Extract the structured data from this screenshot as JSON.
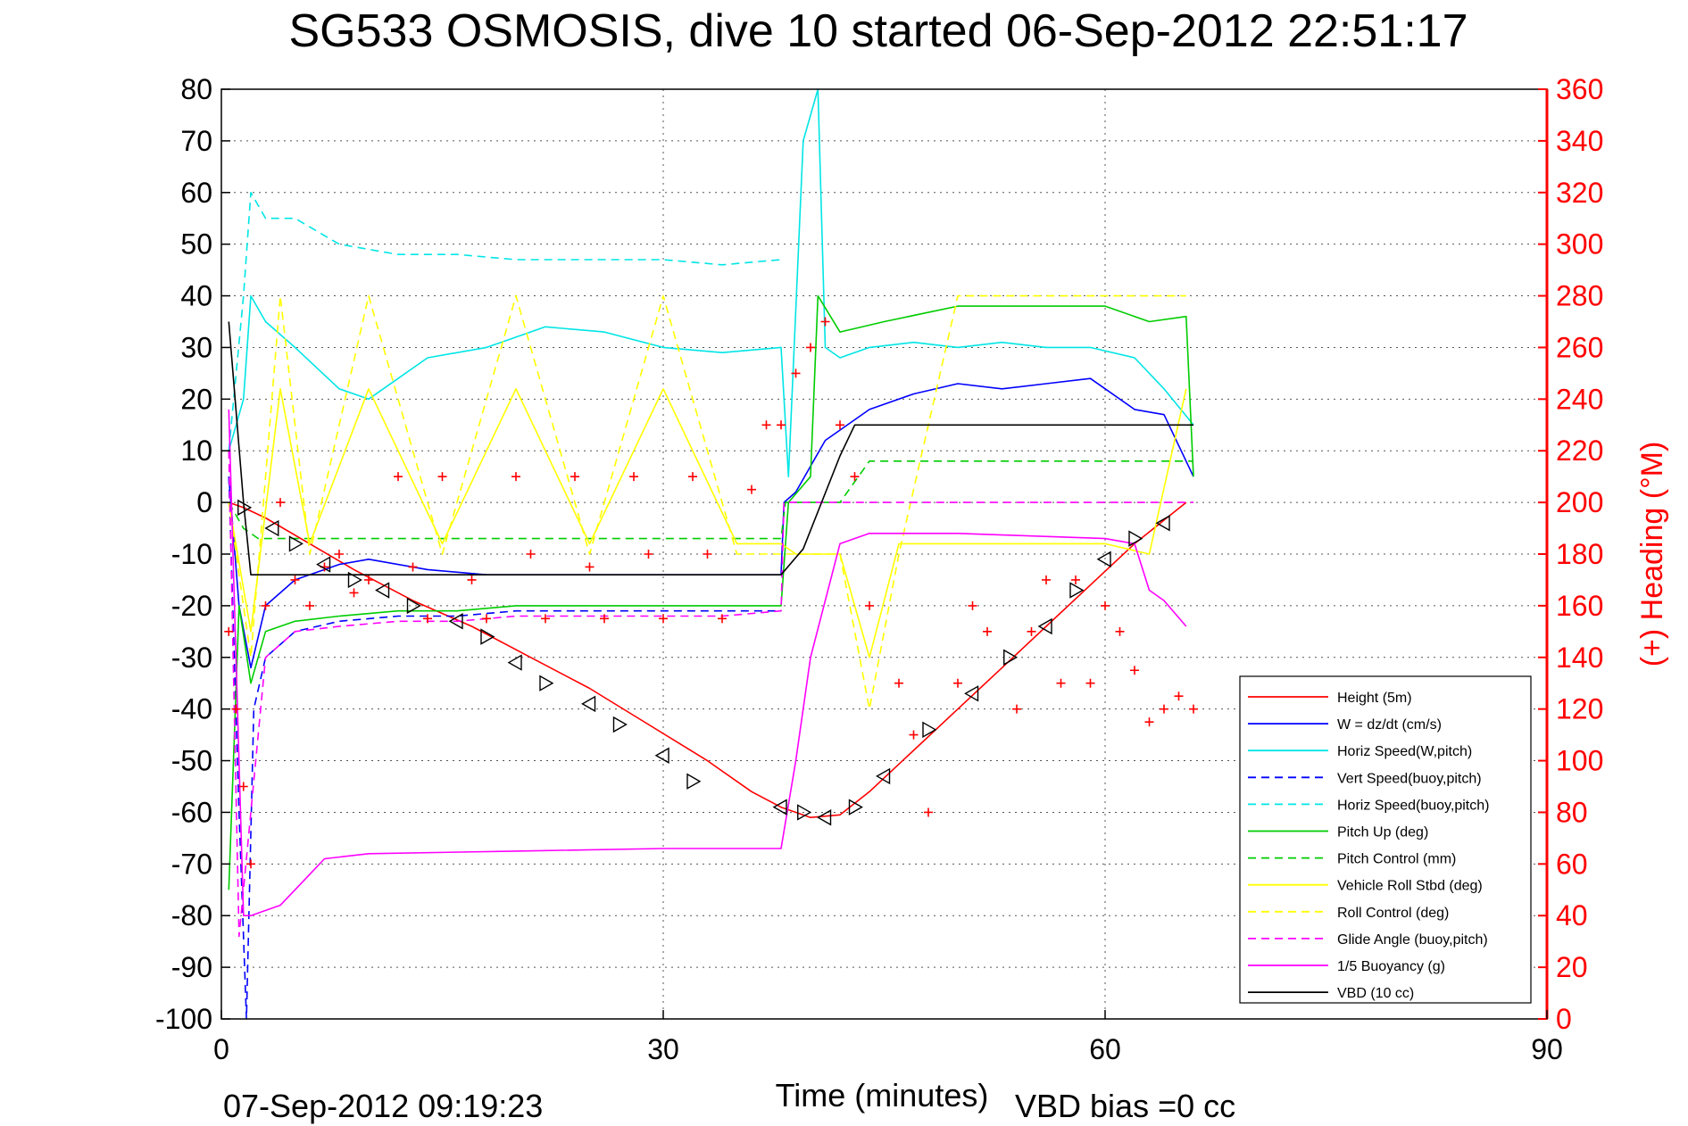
{
  "chart_data": {
    "type": "line",
    "title": "SG533 OSMOSIS, dive 10 started 06-Sep-2012 22:51:17",
    "xlabel": "Time (minutes)",
    "ylabel": "",
    "ylabel_right": "(+) Heading (°M)",
    "xlim": [
      0,
      90
    ],
    "ylim": [
      -100,
      80
    ],
    "ylim_right": [
      0,
      360
    ],
    "x_ticks": [
      0,
      30,
      60,
      90
    ],
    "y_ticks": [
      80,
      70,
      60,
      50,
      40,
      30,
      20,
      10,
      0,
      -10,
      -20,
      -30,
      -40,
      -50,
      -60,
      -70,
      -80,
      -90,
      -100
    ],
    "y_ticks_right": [
      360,
      340,
      320,
      300,
      280,
      260,
      240,
      220,
      200,
      180,
      160,
      140,
      120,
      100,
      80,
      60,
      40,
      20,
      0
    ],
    "grid": true,
    "legend_position": "bottom-right",
    "footer_left": "07-Sep-2012 09:19:23",
    "footer_right": "VBD bias =0 cc",
    "series": [
      {
        "name": "Height (5m)",
        "color": "#ff0000",
        "style": "solid",
        "x": [
          0.5,
          1.5,
          3,
          6,
          9,
          13,
          17,
          21,
          25,
          29,
          33,
          36,
          38,
          40,
          42,
          44,
          47,
          50,
          53,
          56,
          59,
          62,
          65.5
        ],
        "y": [
          0,
          -1,
          -3,
          -8,
          -13,
          -19,
          -24,
          -30,
          -36,
          -43,
          -50,
          -56,
          -59,
          -61,
          -60.5,
          -56,
          -48,
          -40,
          -32,
          -24,
          -16,
          -8,
          0
        ]
      },
      {
        "name": "W = dz/dt (cm/s)",
        "color": "#0000ff",
        "style": "solid",
        "x": [
          0.5,
          1.2,
          2,
          3,
          5,
          8,
          10,
          14,
          18,
          22,
          26,
          30,
          34,
          38,
          38.2,
          39,
          41,
          44,
          47,
          50,
          53,
          56,
          59,
          62,
          64,
          66
        ],
        "y": [
          5,
          -20,
          -32,
          -20,
          -15,
          -12,
          -11,
          -13,
          -14,
          -14,
          -14,
          -14,
          -14,
          -14,
          0,
          2,
          12,
          18,
          21,
          23,
          22,
          23,
          24,
          18,
          17,
          5
        ]
      },
      {
        "name": "Horiz Speed(W,pitch)",
        "color": "#00e5e5",
        "style": "solid",
        "x": [
          0.5,
          1.5,
          2,
          3,
          5,
          8,
          10,
          14,
          18,
          22,
          26,
          30,
          34,
          38,
          38.5,
          39.5,
          40.5,
          41,
          42,
          44,
          47,
          50,
          53,
          56,
          59,
          62,
          64,
          66
        ],
        "y": [
          10,
          20,
          40,
          35,
          30,
          22,
          20,
          28,
          30,
          34,
          33,
          30,
          29,
          30,
          5,
          70,
          80,
          30,
          28,
          30,
          31,
          30,
          31,
          30,
          30,
          28,
          22,
          15
        ]
      },
      {
        "name": "Vert Speed(buoy,pitch)",
        "color": "#0000ff",
        "style": "dashed",
        "x": [
          0.5,
          1.2,
          1.7,
          2.2,
          3,
          5,
          8,
          12,
          16,
          20,
          25,
          30,
          34,
          38
        ],
        "y": [
          5,
          -60,
          -100,
          -40,
          -30,
          -25,
          -23,
          -22,
          -22,
          -21,
          -21,
          -21,
          -21,
          -21
        ]
      },
      {
        "name": "Horiz Speed(buoy,pitch)",
        "color": "#00e5e5",
        "style": "dashed",
        "x": [
          0.5,
          1.5,
          2,
          3,
          5,
          8,
          12,
          16,
          20,
          25,
          30,
          34,
          38
        ],
        "y": [
          10,
          40,
          60,
          55,
          55,
          50,
          48,
          48,
          47,
          47,
          47,
          46,
          47
        ]
      },
      {
        "name": "Pitch Up (deg)",
        "color": "#00cc00",
        "style": "solid",
        "x": [
          0.5,
          1.2,
          2,
          3,
          5,
          8,
          12,
          16,
          20,
          25,
          30,
          34,
          38,
          38.5,
          40,
          40.5,
          42,
          45,
          50,
          55,
          60,
          63,
          65.5,
          66
        ],
        "y": [
          -75,
          -20,
          -35,
          -25,
          -23,
          -22,
          -21,
          -21,
          -20,
          -20,
          -20,
          -20,
          -20,
          0,
          5,
          40,
          33,
          35,
          38,
          38,
          38,
          35,
          36,
          5
        ]
      },
      {
        "name": "Pitch Control (mm)",
        "color": "#00cc00",
        "style": "dashed",
        "x": [
          0.5,
          1.5,
          2.5,
          38,
          38.3,
          42,
          44,
          66
        ],
        "y": [
          0,
          -5,
          -7,
          -7,
          0,
          0,
          8,
          8
        ]
      },
      {
        "name": "Vehicle Roll Stbd (deg)",
        "color": "#ffff00",
        "style": "solid",
        "x": [
          0.5,
          2,
          4,
          6,
          10,
          15,
          20,
          25,
          30,
          35,
          38,
          39,
          42,
          44,
          46,
          50,
          55,
          60,
          63,
          65.5
        ],
        "y": [
          0,
          -25,
          22,
          -8,
          22,
          -8,
          22,
          -8,
          22,
          -8,
          -8,
          -10,
          -10,
          -30,
          -8,
          -8,
          -8,
          -8,
          -10,
          22
        ]
      },
      {
        "name": "Roll Control (deg)",
        "color": "#ffff00",
        "style": "dashed",
        "x": [
          0.5,
          2,
          4,
          6,
          10,
          15,
          20,
          25,
          30,
          35,
          38,
          42,
          44,
          46,
          50,
          55,
          60,
          65.5
        ],
        "y": [
          0,
          -30,
          40,
          -10,
          40,
          -10,
          40,
          -10,
          40,
          -10,
          -10,
          -10,
          -40,
          -10,
          40,
          40,
          40,
          40
        ]
      },
      {
        "name": "Glide Angle (buoy,pitch)",
        "color": "#ff00ff",
        "style": "dashed",
        "x": [
          0.5,
          1.2,
          2,
          3,
          5,
          8,
          12,
          16,
          20,
          25,
          30,
          34,
          38,
          38.2,
          66
        ],
        "y": [
          10,
          -84,
          -60,
          -30,
          -25,
          -24,
          -23,
          -23,
          -22,
          -22,
          -22,
          -22,
          -21,
          0,
          0
        ]
      },
      {
        "name": "1/5 Buoyancy (g)",
        "color": "#ff00ff",
        "style": "solid",
        "x": [
          0.5,
          1.5,
          2,
          3,
          4,
          5,
          6,
          7,
          10,
          20,
          30,
          38,
          39,
          40,
          42,
          44,
          50,
          55,
          60,
          62,
          63,
          64,
          65.5
        ],
        "y": [
          18,
          -80,
          -80,
          -79,
          -78,
          -75,
          -72,
          -69,
          -68,
          -67.5,
          -67,
          -67,
          -50,
          -30,
          -8,
          -6,
          -6,
          -6.5,
          -7,
          -8,
          -17,
          -19,
          -24
        ]
      },
      {
        "name": "VBD (10 cc)",
        "color": "#000000",
        "style": "solid",
        "x": [
          0.5,
          1.5,
          2,
          38,
          39.5,
          42,
          43,
          66
        ],
        "y": [
          35,
          0,
          -14,
          -14,
          -9,
          9,
          15,
          15
        ]
      }
    ],
    "heading_series": {
      "name": "(+) Heading (°M)",
      "color": "#ff0000",
      "marker": "+",
      "x": [
        0.5,
        1,
        1.5,
        2,
        3,
        4,
        5,
        6,
        7,
        8,
        9,
        10,
        12,
        13,
        14,
        15,
        17,
        18,
        20,
        21,
        22,
        24,
        25,
        26,
        28,
        29,
        30,
        32,
        33,
        34,
        36,
        37,
        38,
        39,
        40,
        41,
        42,
        43,
        44,
        46,
        47,
        48,
        50,
        51,
        52,
        54,
        55,
        56,
        57,
        58,
        59,
        60,
        61,
        62,
        63,
        64,
        65,
        66
      ],
      "y": [
        150,
        120,
        90,
        60,
        160,
        200,
        170,
        160,
        175,
        180,
        165,
        170,
        210,
        175,
        155,
        210,
        170,
        155,
        210,
        180,
        155,
        210,
        175,
        155,
        210,
        180,
        155,
        210,
        180,
        155,
        205,
        230,
        230,
        250,
        260,
        270,
        230,
        210,
        160,
        130,
        110,
        80,
        130,
        160,
        150,
        120,
        150,
        170,
        130,
        170,
        130,
        160,
        150,
        135,
        115,
        120,
        125,
        120
      ]
    },
    "turn_markers": {
      "name": "turn markers",
      "color": "#000000",
      "x": [
        1.5,
        3.5,
        5,
        7,
        9,
        11,
        13,
        16,
        18,
        20,
        22,
        25,
        27,
        30,
        32,
        38,
        39.5,
        41,
        43,
        45,
        48,
        51,
        53.5,
        56,
        58,
        60,
        62,
        64
      ],
      "y": [
        -1,
        -5,
        -8,
        -12,
        -15,
        -17,
        -20,
        -23,
        -26,
        -31,
        -35,
        -39,
        -43,
        -49,
        -54,
        -59,
        -60,
        -61,
        -59,
        -53,
        -44,
        -37,
        -30,
        -24,
        -17,
        -11,
        -7,
        -4
      ]
    }
  }
}
